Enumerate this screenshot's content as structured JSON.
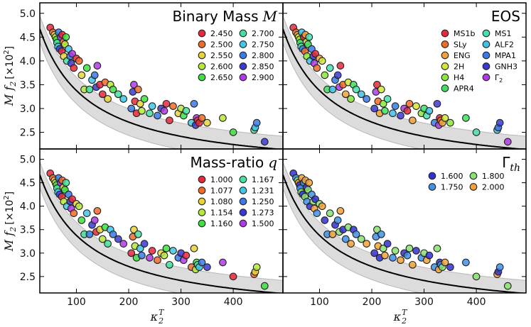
{
  "chart_data": {
    "type": "scatter",
    "x_axis": {
      "label_base": "κ",
      "label_sub": "2",
      "label_sup": "T",
      "ticks": [
        100,
        200,
        300,
        400
      ],
      "range": [
        30,
        495
      ]
    },
    "y_axis": {
      "label_main": "M f",
      "label_sub": "2",
      "label_scale": "[×10",
      "label_scale_sup": "2",
      "label_close": "]",
      "ticks": [
        "5.0",
        "4.5",
        "4.0",
        "3.5",
        "3.0",
        "2.5"
      ],
      "tick_values": [
        5.0,
        4.5,
        4.0,
        3.5,
        3.0,
        2.5
      ],
      "range": [
        2.15,
        5.22
      ]
    },
    "fit": {
      "a": 0.958,
      "b": 75.0,
      "c": 0.0
    },
    "band_halfwidth": 0.28,
    "points": [
      [
        50,
        4.7,
        0,
        0,
        0,
        0
      ],
      [
        55,
        4.6,
        1,
        1,
        1,
        1
      ],
      [
        58,
        4.55,
        2,
        2,
        2,
        2
      ],
      [
        60,
        4.5,
        3,
        3,
        3,
        3
      ],
      [
        62,
        4.45,
        4,
        4,
        4,
        0
      ],
      [
        63,
        4.38,
        5,
        5,
        5,
        1
      ],
      [
        65,
        4.3,
        6,
        6,
        6,
        2
      ],
      [
        66,
        4.6,
        7,
        7,
        7,
        3
      ],
      [
        68,
        4.25,
        8,
        8,
        8,
        0
      ],
      [
        70,
        4.5,
        9,
        0,
        9,
        1
      ],
      [
        72,
        4.2,
        10,
        1,
        0,
        2
      ],
      [
        73,
        4.55,
        0,
        2,
        1,
        3
      ],
      [
        75,
        4.4,
        1,
        3,
        2,
        0
      ],
      [
        76,
        4.1,
        2,
        4,
        3,
        1
      ],
      [
        78,
        4.35,
        3,
        5,
        4,
        2
      ],
      [
        80,
        4.5,
        4,
        6,
        5,
        3
      ],
      [
        82,
        4.0,
        5,
        7,
        6,
        0
      ],
      [
        85,
        4.25,
        6,
        8,
        7,
        1
      ],
      [
        88,
        4.1,
        7,
        9,
        8,
        2
      ],
      [
        90,
        3.95,
        8,
        10,
        9,
        3
      ],
      [
        92,
        4.15,
        9,
        0,
        0,
        0
      ],
      [
        95,
        3.85,
        10,
        1,
        1,
        1
      ],
      [
        100,
        4.05,
        0,
        2,
        2,
        2
      ],
      [
        105,
        4.0,
        1,
        3,
        3,
        3
      ],
      [
        110,
        3.7,
        2,
        4,
        4,
        0
      ],
      [
        115,
        3.4,
        3,
        5,
        5,
        1
      ],
      [
        120,
        3.85,
        4,
        6,
        6,
        2
      ],
      [
        125,
        3.4,
        5,
        7,
        7,
        3
      ],
      [
        130,
        3.6,
        6,
        8,
        8,
        0
      ],
      [
        135,
        3.7,
        7,
        9,
        9,
        1
      ],
      [
        138,
        3.45,
        8,
        10,
        0,
        2
      ],
      [
        140,
        3.9,
        9,
        0,
        1,
        3
      ],
      [
        145,
        3.5,
        10,
        1,
        2,
        0
      ],
      [
        150,
        3.3,
        0,
        2,
        3,
        1
      ],
      [
        155,
        3.55,
        1,
        3,
        4,
        2
      ],
      [
        160,
        3.2,
        2,
        4,
        5,
        3
      ],
      [
        165,
        3.5,
        3,
        5,
        6,
        0
      ],
      [
        170,
        3.4,
        4,
        6,
        7,
        1
      ],
      [
        180,
        3.3,
        5,
        7,
        8,
        2
      ],
      [
        190,
        3.2,
        6,
        8,
        9,
        3
      ],
      [
        205,
        3.0,
        7,
        9,
        0,
        0
      ],
      [
        208,
        3.35,
        8,
        10,
        1,
        1
      ],
      [
        210,
        3.5,
        9,
        0,
        2,
        2
      ],
      [
        212,
        3.15,
        10,
        1,
        3,
        3
      ],
      [
        215,
        2.9,
        0,
        2,
        4,
        0
      ],
      [
        218,
        3.4,
        1,
        3,
        5,
        1
      ],
      [
        222,
        3.1,
        2,
        4,
        6,
        2
      ],
      [
        225,
        2.95,
        3,
        5,
        7,
        3
      ],
      [
        230,
        3.2,
        4,
        6,
        8,
        0
      ],
      [
        240,
        2.9,
        5,
        7,
        9,
        1
      ],
      [
        245,
        3.05,
        6,
        8,
        0,
        2
      ],
      [
        255,
        2.85,
        7,
        9,
        1,
        3
      ],
      [
        262,
        3.0,
        8,
        10,
        2,
        0
      ],
      [
        268,
        2.95,
        9,
        0,
        3,
        1
      ],
      [
        272,
        3.1,
        10,
        1,
        4,
        2
      ],
      [
        278,
        2.75,
        0,
        2,
        5,
        3
      ],
      [
        285,
        3.05,
        1,
        3,
        6,
        0
      ],
      [
        295,
        2.9,
        2,
        4,
        7,
        1
      ],
      [
        300,
        3.0,
        3,
        5,
        8,
        2
      ],
      [
        305,
        2.85,
        4,
        6,
        9,
        3
      ],
      [
        310,
        2.95,
        5,
        7,
        0,
        0
      ],
      [
        320,
        2.7,
        6,
        8,
        1,
        1
      ],
      [
        325,
        3.1,
        7,
        9,
        2,
        2
      ],
      [
        328,
        2.65,
        8,
        10,
        3,
        3
      ],
      [
        330,
        2.8,
        9,
        0,
        4,
        0
      ],
      [
        332,
        2.75,
        10,
        1,
        5,
        1
      ],
      [
        335,
        2.7,
        0,
        2,
        6,
        2
      ],
      [
        340,
        2.8,
        1,
        3,
        7,
        3
      ],
      [
        350,
        2.7,
        2,
        4,
        8,
        0
      ],
      [
        380,
        2.8,
        3,
        5,
        9,
        1
      ],
      [
        400,
        2.5,
        4,
        6,
        0,
        2
      ],
      [
        440,
        2.55,
        5,
        7,
        1,
        3
      ],
      [
        442,
        2.6,
        6,
        8,
        2,
        0
      ],
      [
        445,
        2.7,
        7,
        9,
        3,
        1
      ],
      [
        460,
        2.3,
        8,
        10,
        4,
        2
      ]
    ],
    "panels": [
      {
        "title": "Binary Mass",
        "title_var": "M",
        "legend_cols": 2,
        "legend": [
          "2.450",
          "2.500",
          "2.550",
          "2.600",
          "2.650",
          "2.700",
          "2.750",
          "2.800",
          "2.850",
          "2.900"
        ],
        "colors": [
          "#e8283c",
          "#f26b28",
          "#e8d43a",
          "#b6e83a",
          "#3ee040",
          "#44e0a0",
          "#40c8e8",
          "#3a7ae8",
          "#3a3ad0",
          "#b03ae8"
        ]
      },
      {
        "title": "EOS",
        "title_var": "",
        "legend_cols": 2,
        "legend": [
          "MS1b",
          "SLy",
          "ENG",
          "2H",
          "H4",
          "APR4",
          "MS1",
          "ALF2",
          "MPA1",
          "GNH3",
          "Γ"
        ],
        "legend_last_sub": "2",
        "colors": [
          "#e8283c",
          "#f26b28",
          "#f2a23a",
          "#d0e83a",
          "#88e83a",
          "#3ee060",
          "#44e0b0",
          "#40c0e8",
          "#3a7ae8",
          "#3a3ad0",
          "#b03ae8"
        ]
      },
      {
        "title": "Mass-ratio",
        "title_var": "q",
        "legend_cols": 2,
        "legend": [
          "1.000",
          "1.077",
          "1.080",
          "1.154",
          "1.160",
          "1.167",
          "1.231",
          "1.250",
          "1.273",
          "1.500"
        ],
        "colors": [
          "#e8283c",
          "#f26b28",
          "#e8d43a",
          "#b6e83a",
          "#3ee040",
          "#44e0a0",
          "#40c8e8",
          "#3a7ae8",
          "#3a3ad0",
          "#b03ae8"
        ]
      },
      {
        "title": "Γ",
        "title_var": "",
        "title_sub": "th",
        "legend_cols": 2,
        "legend": [
          "1.600",
          "1.750",
          "1.800",
          "2.000"
        ],
        "colors": [
          "#3030d0",
          "#4090e8",
          "#88e070",
          "#f2a23a"
        ]
      }
    ]
  }
}
